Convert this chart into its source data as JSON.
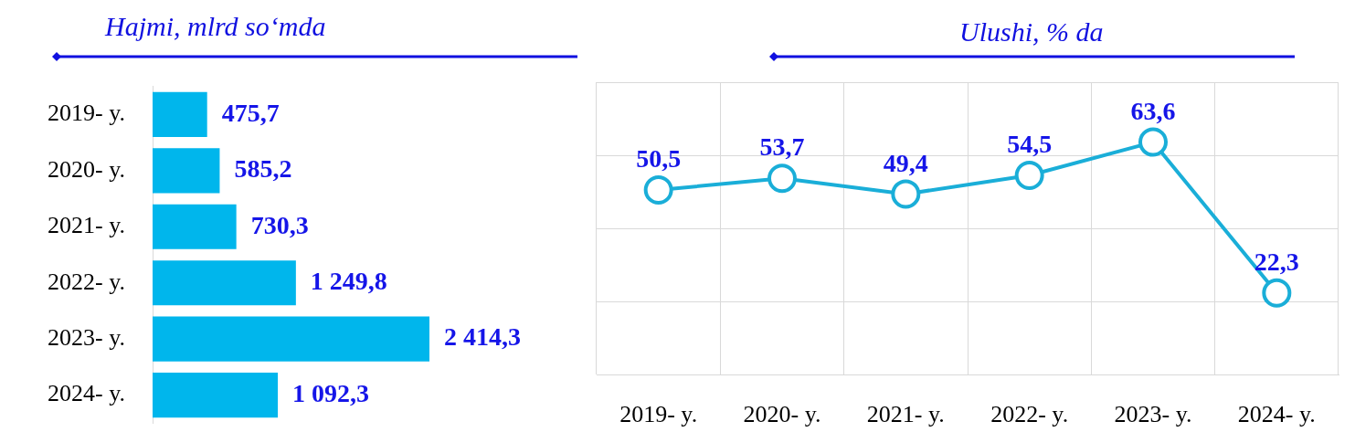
{
  "chart_data": [
    {
      "type": "bar",
      "title": "Hajmi, mlrd so‘mda",
      "orientation": "horizontal",
      "categories": [
        "2019- y.",
        "2020- y.",
        "2021- y.",
        "2022- y.",
        "2023- y.",
        "2024- y."
      ],
      "values": [
        475.7,
        585.2,
        730.3,
        1249.8,
        2414.3,
        1092.3
      ],
      "value_labels": [
        "475,7",
        "585,2",
        "730,3",
        "1 249,8",
        "2 414,3",
        "1 092,3"
      ],
      "color": "#00b6ec"
    },
    {
      "type": "line",
      "title": "Ulushi, % da",
      "categories": [
        "2019- y.",
        "2020- y.",
        "2021- y.",
        "2022- y.",
        "2023- y.",
        "2024- y."
      ],
      "values": [
        50.5,
        53.7,
        49.4,
        54.5,
        63.6,
        22.3
      ],
      "value_labels": [
        "50,5",
        "53,7",
        "49,4",
        "54,5",
        "63,6",
        "22,3"
      ],
      "color": "#1aaed8",
      "ylim": [
        0,
        80
      ],
      "yticks": [
        {
          "value": 0,
          "label": null
        },
        {
          "value": 20,
          "label": null
        },
        {
          "value": 40,
          "label": null
        },
        {
          "value": 60,
          "label": null
        },
        {
          "value": 80,
          "label": null
        }
      ],
      "grid": true,
      "marker": "circle",
      "tick_labels": "x"
    }
  ]
}
